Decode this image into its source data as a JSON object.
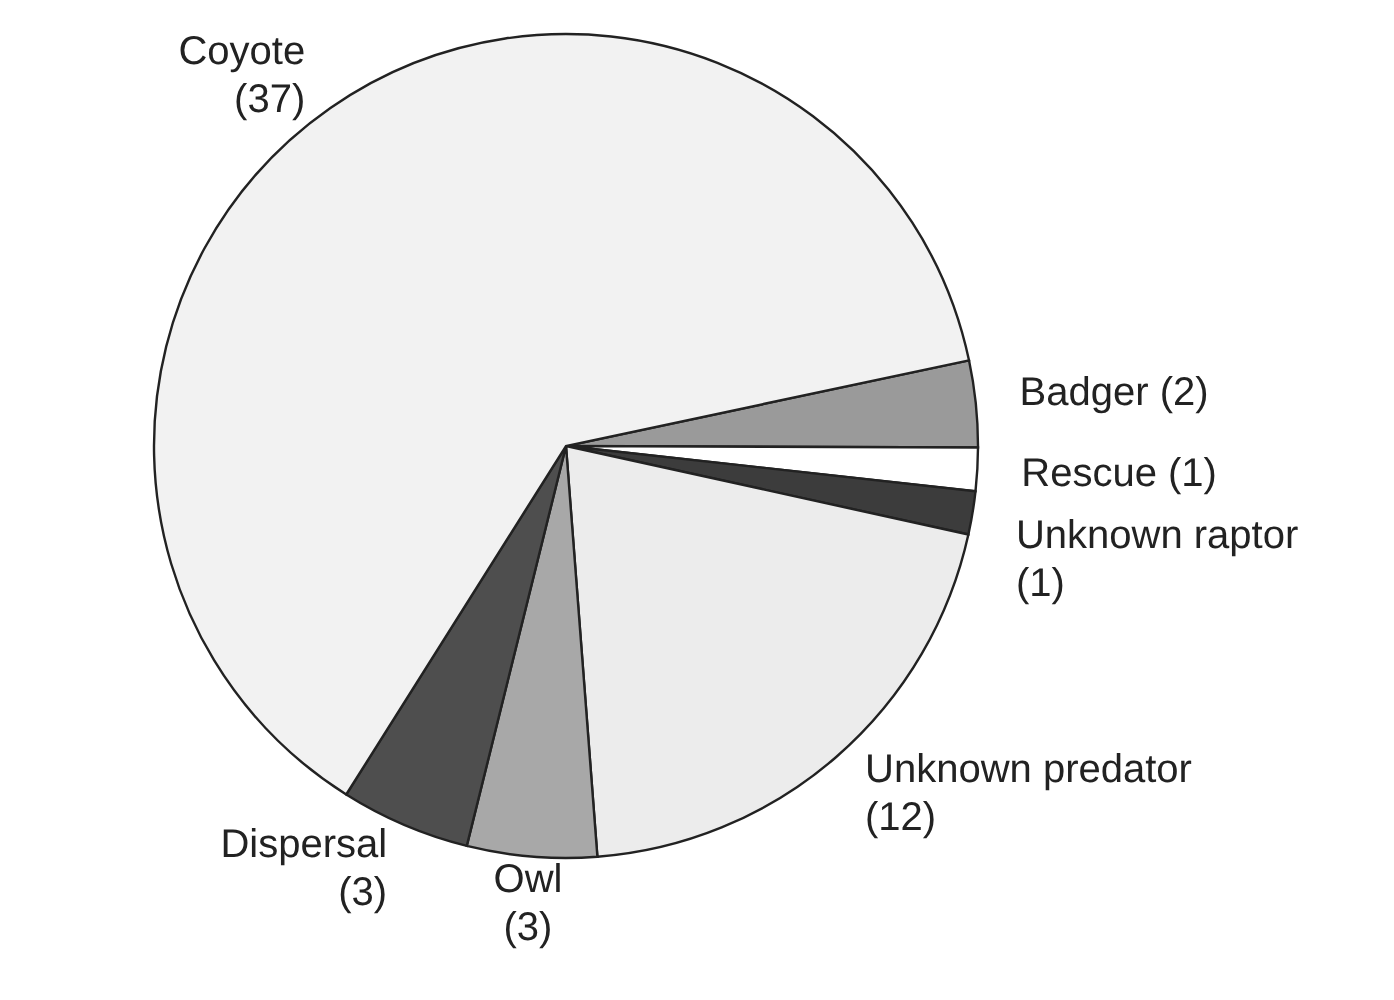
{
  "chart_data": {
    "type": "pie",
    "categories": [
      "Badger",
      "Rescue",
      "Unknown raptor",
      "Unknown predator",
      "Owl",
      "Dispersal",
      "Coyote"
    ],
    "values": [
      2,
      1,
      1,
      12,
      3,
      3,
      37
    ],
    "colors": [
      "#9a9a9a",
      "#ffffff",
      "#3c3c3c",
      "#ececec",
      "#a8a8a8",
      "#4e4e4e",
      "#f2f2f2"
    ],
    "value_labels": [
      "(2)",
      "(1)",
      "(1)",
      "(12)",
      "(3)",
      "(3)",
      "(37)"
    ]
  }
}
